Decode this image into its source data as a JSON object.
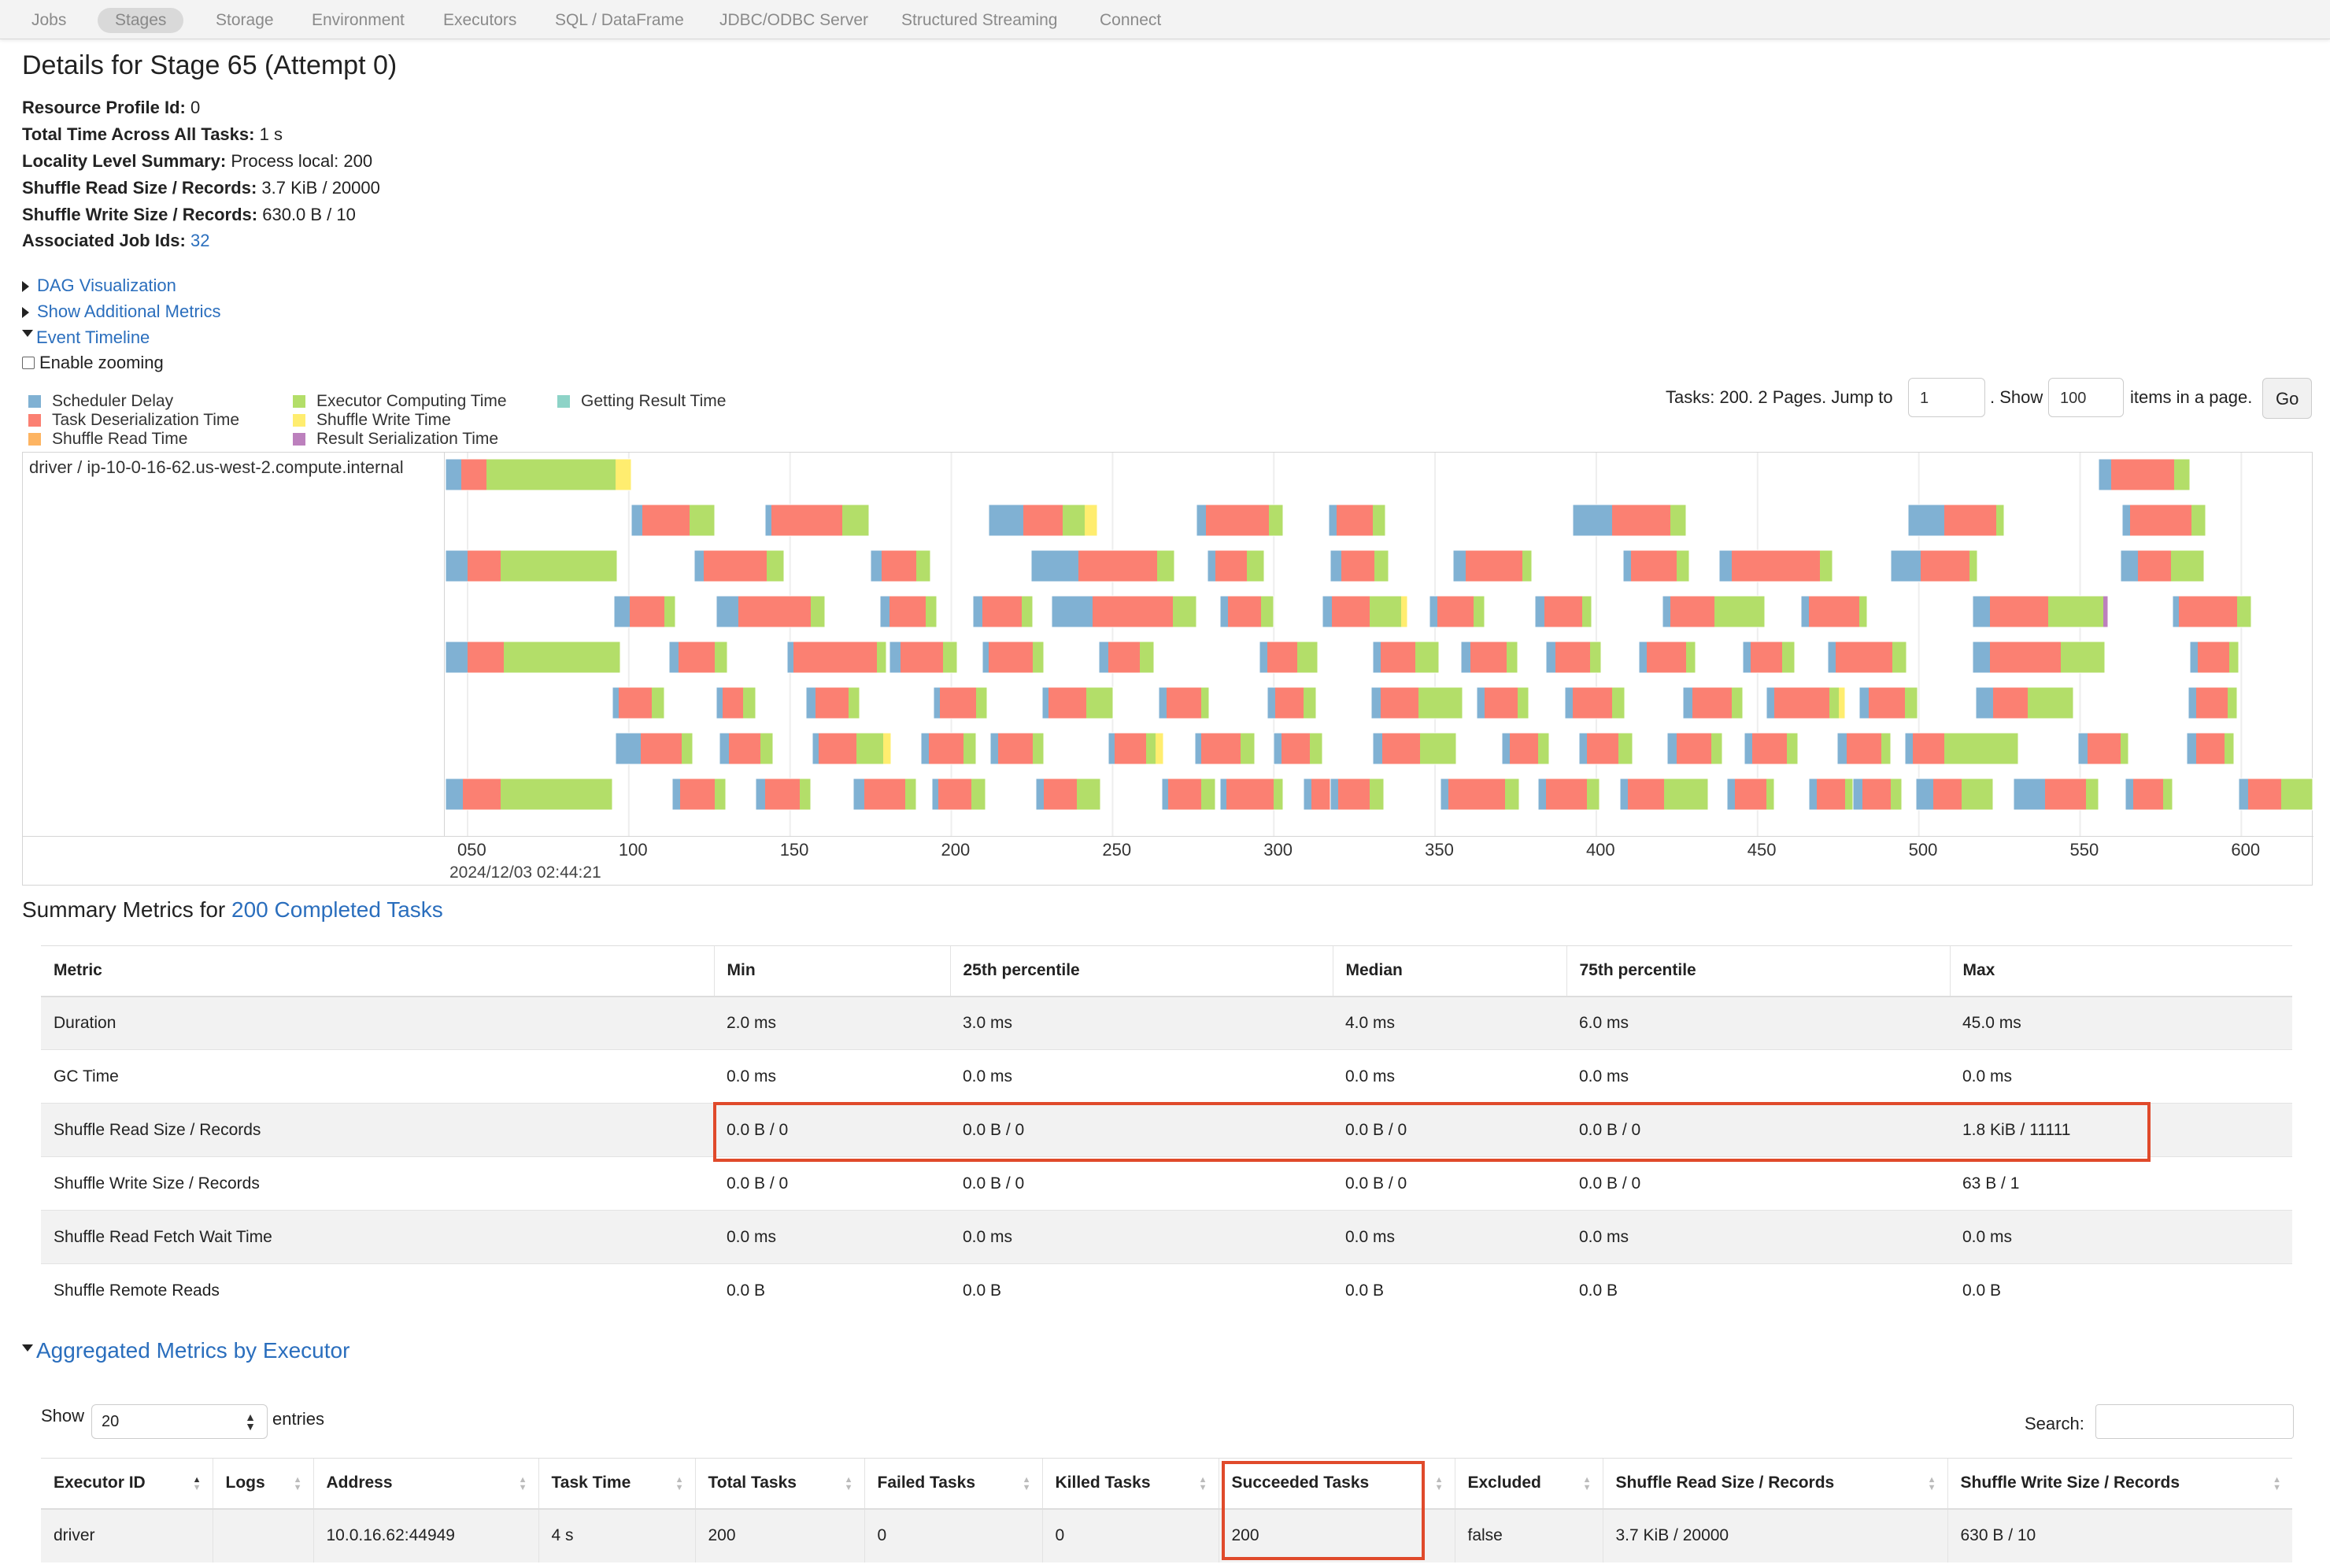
{
  "nav": {
    "items": [
      "Jobs",
      "Stages",
      "Storage",
      "Environment",
      "Executors",
      "SQL / DataFrame",
      "JDBC/ODBC Server",
      "Structured Streaming",
      "Connect"
    ],
    "active": "Stages"
  },
  "title": "Details for Stage 65 (Attempt 0)",
  "info": {
    "resource_profile": {
      "label": "Resource Profile Id:",
      "value": "0"
    },
    "total_time": {
      "label": "Total Time Across All Tasks:",
      "value": "1 s"
    },
    "locality": {
      "label": "Locality Level Summary:",
      "value": "Process local: 200"
    },
    "shuffle_read": {
      "label": "Shuffle Read Size / Records:",
      "value": "3.7 KiB / 20000"
    },
    "shuffle_write": {
      "label": "Shuffle Write Size / Records:",
      "value": "630.0 B / 10"
    },
    "job_ids": {
      "label": "Associated Job Ids:",
      "value": "32"
    }
  },
  "toggles": {
    "dag": "DAG Visualization",
    "additional_metrics": "Show Additional Metrics",
    "event_timeline": "Event Timeline",
    "enable_zooming": "Enable zooming"
  },
  "legend": [
    {
      "label": "Scheduler Delay",
      "color": "#80b1d3"
    },
    {
      "label": "Task Deserialization Time",
      "color": "#fb8072"
    },
    {
      "label": "Shuffle Read Time",
      "color": "#fdb462"
    },
    {
      "label": "Executor Computing Time",
      "color": "#b3de69"
    },
    {
      "label": "Shuffle Write Time",
      "color": "#ffed6f"
    },
    {
      "label": "Result Serialization Time",
      "color": "#bc80bd"
    },
    {
      "label": "Getting Result Time",
      "color": "#8dd3c7"
    }
  ],
  "paging": {
    "prefix": "Tasks: 200. 2 Pages. Jump to",
    "page_value": "1",
    "show_label": ". Show",
    "size_value": "100",
    "suffix": "items in a page.",
    "go": "Go"
  },
  "timeline": {
    "executor_label": "driver / ip-10-0-16-62.us-west-2.compute.internal",
    "tick_labels": [
      "050",
      "100",
      "150",
      "200",
      "250",
      "300",
      "350",
      "400",
      "450",
      "500",
      "550",
      "600"
    ],
    "date": "2024/12/03 02:44:21"
  },
  "summary": {
    "title_prefix": "Summary Metrics for",
    "title_link": "200 Completed Tasks",
    "headers": [
      "Metric",
      "Min",
      "25th percentile",
      "Median",
      "75th percentile",
      "Max"
    ],
    "rows": [
      [
        "Duration",
        "2.0 ms",
        "3.0 ms",
        "4.0 ms",
        "6.0 ms",
        "45.0 ms"
      ],
      [
        "GC Time",
        "0.0 ms",
        "0.0 ms",
        "0.0 ms",
        "0.0 ms",
        "0.0 ms"
      ],
      [
        "Shuffle Read Size / Records",
        "0.0 B / 0",
        "0.0 B / 0",
        "0.0 B / 0",
        "0.0 B / 0",
        "1.8 KiB / 11111"
      ],
      [
        "Shuffle Write Size / Records",
        "0.0 B / 0",
        "0.0 B / 0",
        "0.0 B / 0",
        "0.0 B / 0",
        "63 B / 1"
      ],
      [
        "Shuffle Read Fetch Wait Time",
        "0.0 ms",
        "0.0 ms",
        "0.0 ms",
        "0.0 ms",
        "0.0 ms"
      ],
      [
        "Shuffle Remote Reads",
        "0.0 B",
        "0.0 B",
        "0.0 B",
        "0.0 B",
        "0.0 B"
      ]
    ]
  },
  "aggregated": {
    "title": "Aggregated Metrics by Executor",
    "show_label": "Show",
    "show_value": "20",
    "entries_label": "entries",
    "search_label": "Search:",
    "headers": [
      "Executor ID",
      "Logs",
      "Address",
      "Task Time",
      "Total Tasks",
      "Failed Tasks",
      "Killed Tasks",
      "Succeeded Tasks",
      "Excluded",
      "Shuffle Read Size / Records",
      "Shuffle Write Size / Records"
    ],
    "rows": [
      [
        "driver",
        "",
        "10.0.16.62:44949",
        "4 s",
        "200",
        "0",
        "0",
        "200",
        "false",
        "3.7 KiB / 20000",
        "630 B / 10"
      ]
    ]
  }
}
